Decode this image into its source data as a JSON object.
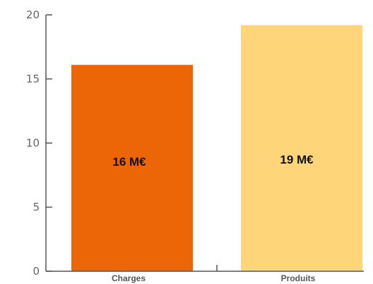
{
  "chart_data": {
    "type": "bar",
    "categories": [
      "Charges",
      "Produits"
    ],
    "values": [
      16.1,
      19.2
    ],
    "data_labels": [
      "16 M€",
      "19 M€"
    ],
    "colors": [
      "#ec6608",
      "#fed679"
    ],
    "title": "",
    "xlabel": "",
    "ylabel": "",
    "ylim": [
      0,
      20
    ],
    "yticks": [
      "0",
      "5",
      "10",
      "15",
      "20"
    ],
    "grid": false,
    "legend": "none"
  }
}
